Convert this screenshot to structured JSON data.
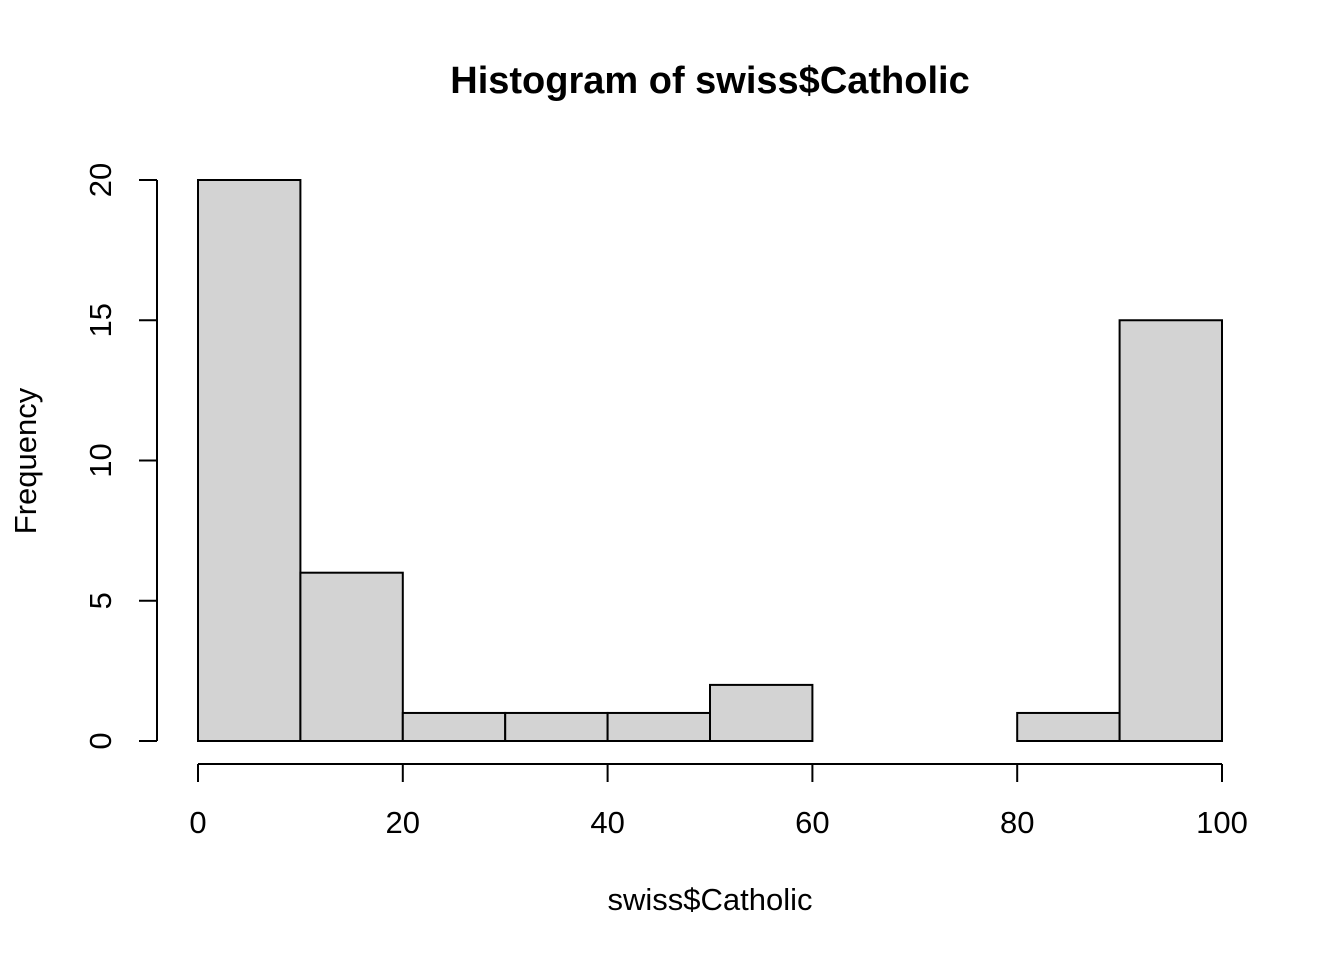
{
  "chart_data": {
    "type": "bar",
    "subtype": "histogram",
    "title": "Histogram of swiss$Catholic",
    "xlabel": "swiss$Catholic",
    "ylabel": "Frequency",
    "bins": [
      {
        "start": 0,
        "end": 10,
        "count": 20
      },
      {
        "start": 10,
        "end": 20,
        "count": 6
      },
      {
        "start": 20,
        "end": 30,
        "count": 1
      },
      {
        "start": 30,
        "end": 40,
        "count": 1
      },
      {
        "start": 40,
        "end": 50,
        "count": 1
      },
      {
        "start": 50,
        "end": 60,
        "count": 2
      },
      {
        "start": 60,
        "end": 70,
        "count": 0
      },
      {
        "start": 70,
        "end": 80,
        "count": 0
      },
      {
        "start": 80,
        "end": 90,
        "count": 1
      },
      {
        "start": 90,
        "end": 100,
        "count": 15
      }
    ],
    "xlim": [
      0,
      100
    ],
    "ylim": [
      0,
      20
    ],
    "x_ticks": [
      "0",
      "20",
      "40",
      "60",
      "80",
      "100"
    ],
    "y_ticks": [
      "0",
      "5",
      "10",
      "15",
      "20"
    ],
    "bar_color": "#d3d3d3",
    "border_color": "#000000",
    "grid": false,
    "legend": "none"
  }
}
